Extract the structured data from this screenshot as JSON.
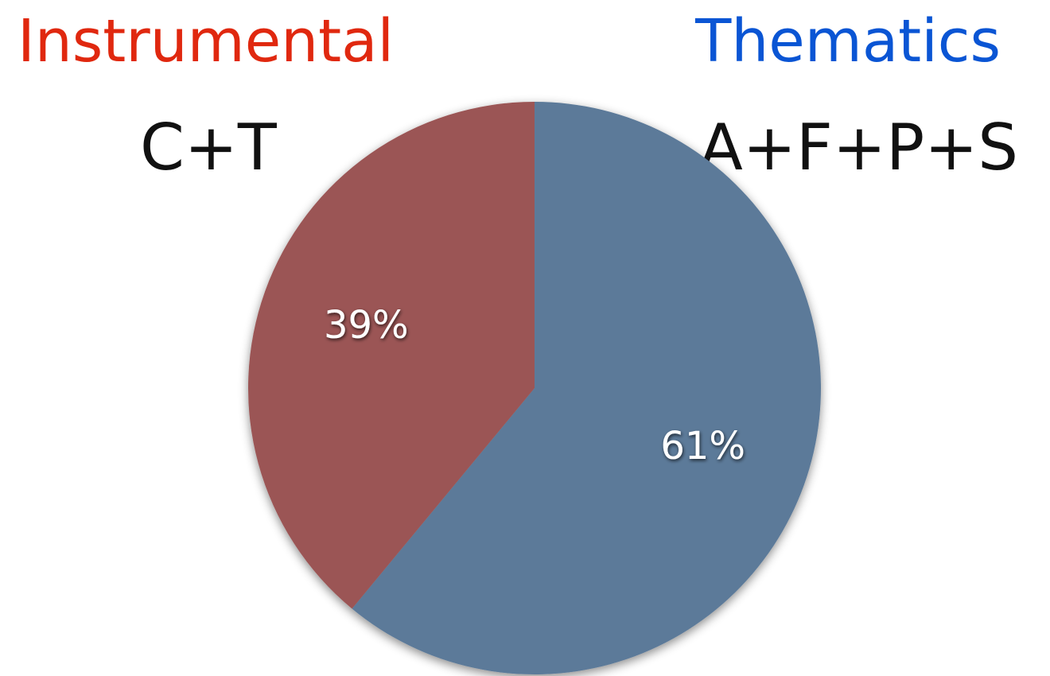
{
  "headings": {
    "left": "Instrumental",
    "right": "Thematics",
    "left_color": "#e0280f",
    "right_color": "#0a55d4"
  },
  "subheadings": {
    "left": "C+T",
    "right": "A+F+P+S"
  },
  "chart_data": {
    "type": "pie",
    "start_angle": "12 o'clock",
    "direction": "clockwise",
    "slices": [
      {
        "label": "A+F+P+S",
        "value": 61,
        "display": "61%",
        "color": "#5c7a99"
      },
      {
        "label": "C+T",
        "value": 39,
        "display": "39%",
        "color": "#9b5554"
      }
    ]
  }
}
